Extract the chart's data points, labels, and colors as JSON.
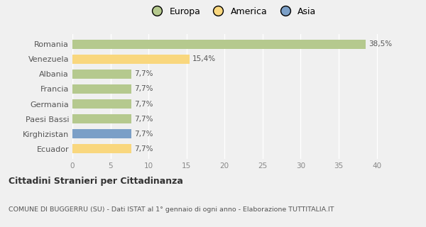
{
  "categories": [
    "Ecuador",
    "Kirghizistan",
    "Paesi Bassi",
    "Germania",
    "Francia",
    "Albania",
    "Venezuela",
    "Romania"
  ],
  "values": [
    7.7,
    7.7,
    7.7,
    7.7,
    7.7,
    7.7,
    15.4,
    38.5
  ],
  "bar_colors": [
    "#f9d77e",
    "#7b9fc7",
    "#b5c98e",
    "#b5c98e",
    "#b5c98e",
    "#b5c98e",
    "#f9d77e",
    "#b5c98e"
  ],
  "labels": [
    "7,7%",
    "7,7%",
    "7,7%",
    "7,7%",
    "7,7%",
    "7,7%",
    "15,4%",
    "38,5%"
  ],
  "xlim": [
    0,
    42
  ],
  "xticks": [
    0,
    5,
    10,
    15,
    20,
    25,
    30,
    35,
    40
  ],
  "legend_labels": [
    "Europa",
    "America",
    "Asia"
  ],
  "legend_colors": [
    "#b5c98e",
    "#f9d77e",
    "#7b9fc7"
  ],
  "title_bold": "Cittadini Stranieri per Cittadinanza",
  "subtitle": "COMUNE DI BUGGERRU (SU) - Dati ISTAT al 1° gennaio di ogni anno - Elaborazione TUTTITALIA.IT",
  "background_color": "#f0f0f0",
  "grid_color": "#ffffff",
  "bar_height": 0.6
}
